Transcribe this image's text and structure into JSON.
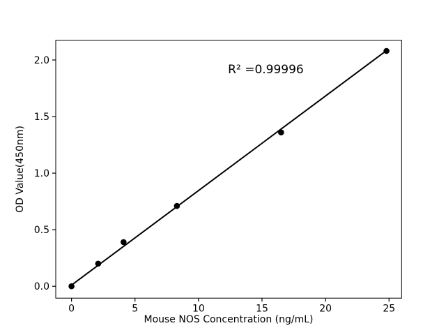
{
  "figure": {
    "background": "#ffffff"
  },
  "chart_data": {
    "type": "scatter",
    "title": "",
    "xlabel": "Mouse NOS Concentration (ng/mL)",
    "ylabel": "OD Value(450nm)",
    "annotation": {
      "text": "R² =0.99996",
      "x": 15.3,
      "y": 1.92
    },
    "series": [
      {
        "name": "standard-points",
        "x": [
          0,
          2.1,
          4.1,
          8.3,
          16.5,
          24.8
        ],
        "y": [
          0.0,
          0.2,
          0.39,
          0.71,
          1.36,
          2.08
        ]
      }
    ],
    "fit_line": {
      "slope": 0.0836,
      "intercept": 0.01,
      "x_start": 0,
      "x_end": 24.8
    },
    "xtick_values": [
      0,
      5,
      10,
      15,
      20,
      25
    ],
    "xtick_labels": [
      "0",
      "5",
      "10",
      "15",
      "20",
      "25"
    ],
    "ytick_values": [
      0.0,
      0.5,
      1.0,
      1.5,
      2.0
    ],
    "ytick_labels": [
      "0.0",
      "0.5",
      "1.0",
      "1.5",
      "2.0"
    ],
    "xlim": [
      -1.24,
      25.99
    ],
    "ylim": [
      -0.105,
      2.175
    ],
    "grid": false,
    "legend": "none",
    "colors": {
      "points": "#000000",
      "line": "#000000",
      "axis": "#000000",
      "text": "#000000",
      "background": "#ffffff"
    }
  }
}
